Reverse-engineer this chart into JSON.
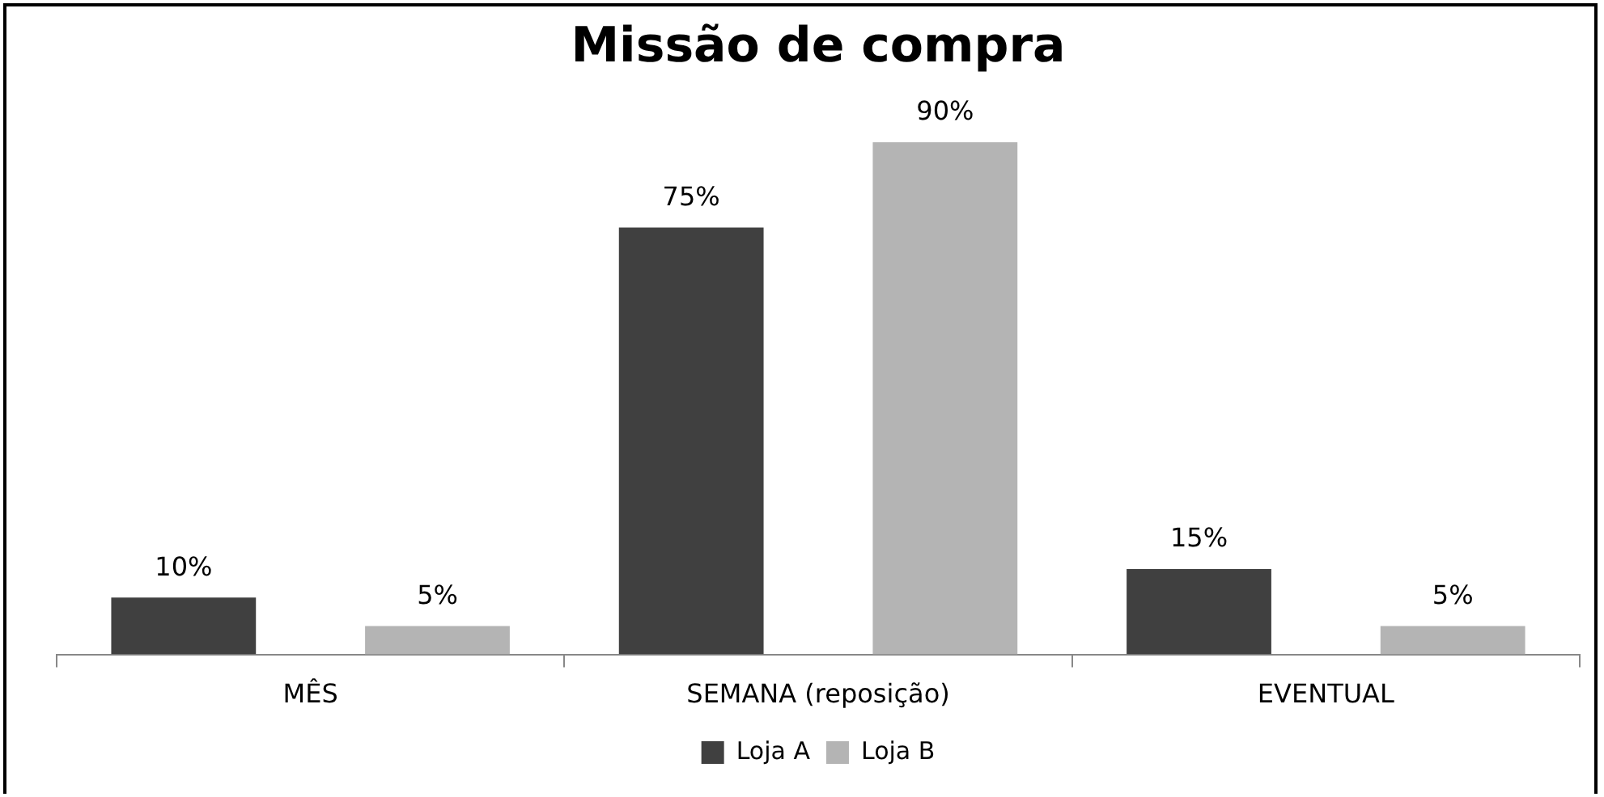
{
  "chart_data": {
    "type": "bar",
    "title": "Missão de compra",
    "categories": [
      "MÊS",
      "SEMANA (reposição)",
      "EVENTUAL"
    ],
    "series": [
      {
        "name": "Loja A",
        "color": "#404040",
        "values": [
          10,
          75,
          15
        ],
        "value_labels": [
          "10%",
          "75%",
          "15%"
        ]
      },
      {
        "name": "Loja B",
        "color": "#b4b4b4",
        "values": [
          5,
          90,
          5
        ],
        "value_labels": [
          "5%",
          "90%",
          "5%"
        ]
      }
    ],
    "legend": "bottom",
    "grid": false
  }
}
